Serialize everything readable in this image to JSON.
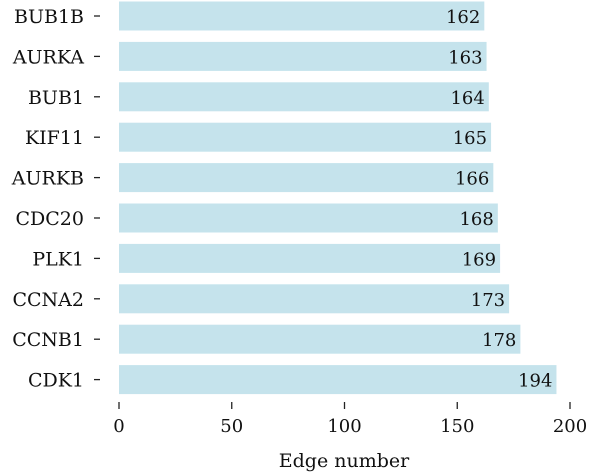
{
  "chart_data": {
    "type": "bar",
    "orientation": "horizontal",
    "categories": [
      "BUB1B",
      "AURKA",
      "BUB1",
      "KIF11",
      "AURKB",
      "CDC20",
      "PLK1",
      "CCNA2",
      "CCNB1",
      "CDK1"
    ],
    "values": [
      162,
      163,
      164,
      165,
      166,
      168,
      169,
      173,
      178,
      194
    ],
    "xlabel": "Edge number",
    "ylabel": "",
    "xlim": [
      0,
      200
    ],
    "xticks": [
      0,
      50,
      100,
      150,
      200
    ],
    "bar_color": "#c5e3ec",
    "grid": false,
    "legend": "none"
  }
}
